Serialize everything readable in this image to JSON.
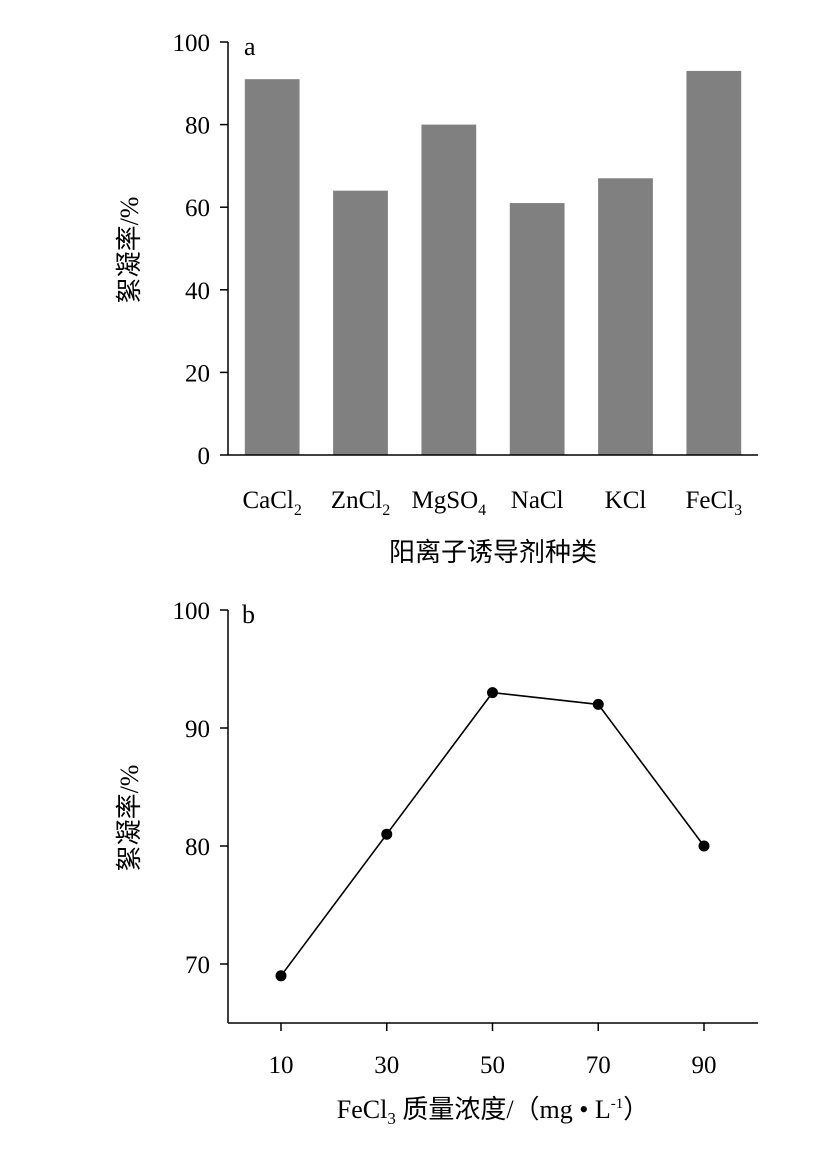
{
  "chart_data": [
    {
      "type": "bar",
      "panel_label": "a",
      "categories": [
        {
          "name": "CaCl",
          "sub": "2"
        },
        {
          "name": "ZnCl",
          "sub": "2"
        },
        {
          "name": "MgSO",
          "sub": "4"
        },
        {
          "name": "NaCl",
          "sub": ""
        },
        {
          "name": "KCl",
          "sub": ""
        },
        {
          "name": "FeCl",
          "sub": "3"
        }
      ],
      "values": [
        91,
        64,
        80,
        61,
        67,
        93
      ],
      "ylabel": "絮凝率/%",
      "xlabel": "阳离子诱导剂种类",
      "ylim": [
        0,
        100
      ],
      "yticks": [
        0,
        20,
        40,
        60,
        80,
        100
      ],
      "bar_color": "#808080",
      "grid": false
    },
    {
      "type": "line",
      "panel_label": "b",
      "x": [
        10,
        30,
        50,
        70,
        90
      ],
      "y": [
        69,
        81,
        93,
        92,
        80
      ],
      "ylabel": "絮凝率/%",
      "xlabel": {
        "prefix": "FeCl",
        "sub": "3",
        "mid": " 质量浓度/（mg • L",
        "sup": "-1",
        "suffix": "）"
      },
      "xticks": [
        10,
        30,
        50,
        70,
        90
      ],
      "yticks": [
        70,
        80,
        90,
        100
      ],
      "ylim": [
        65,
        100
      ],
      "line_color": "#000000",
      "marker": "filled-circle",
      "grid": false
    }
  ]
}
